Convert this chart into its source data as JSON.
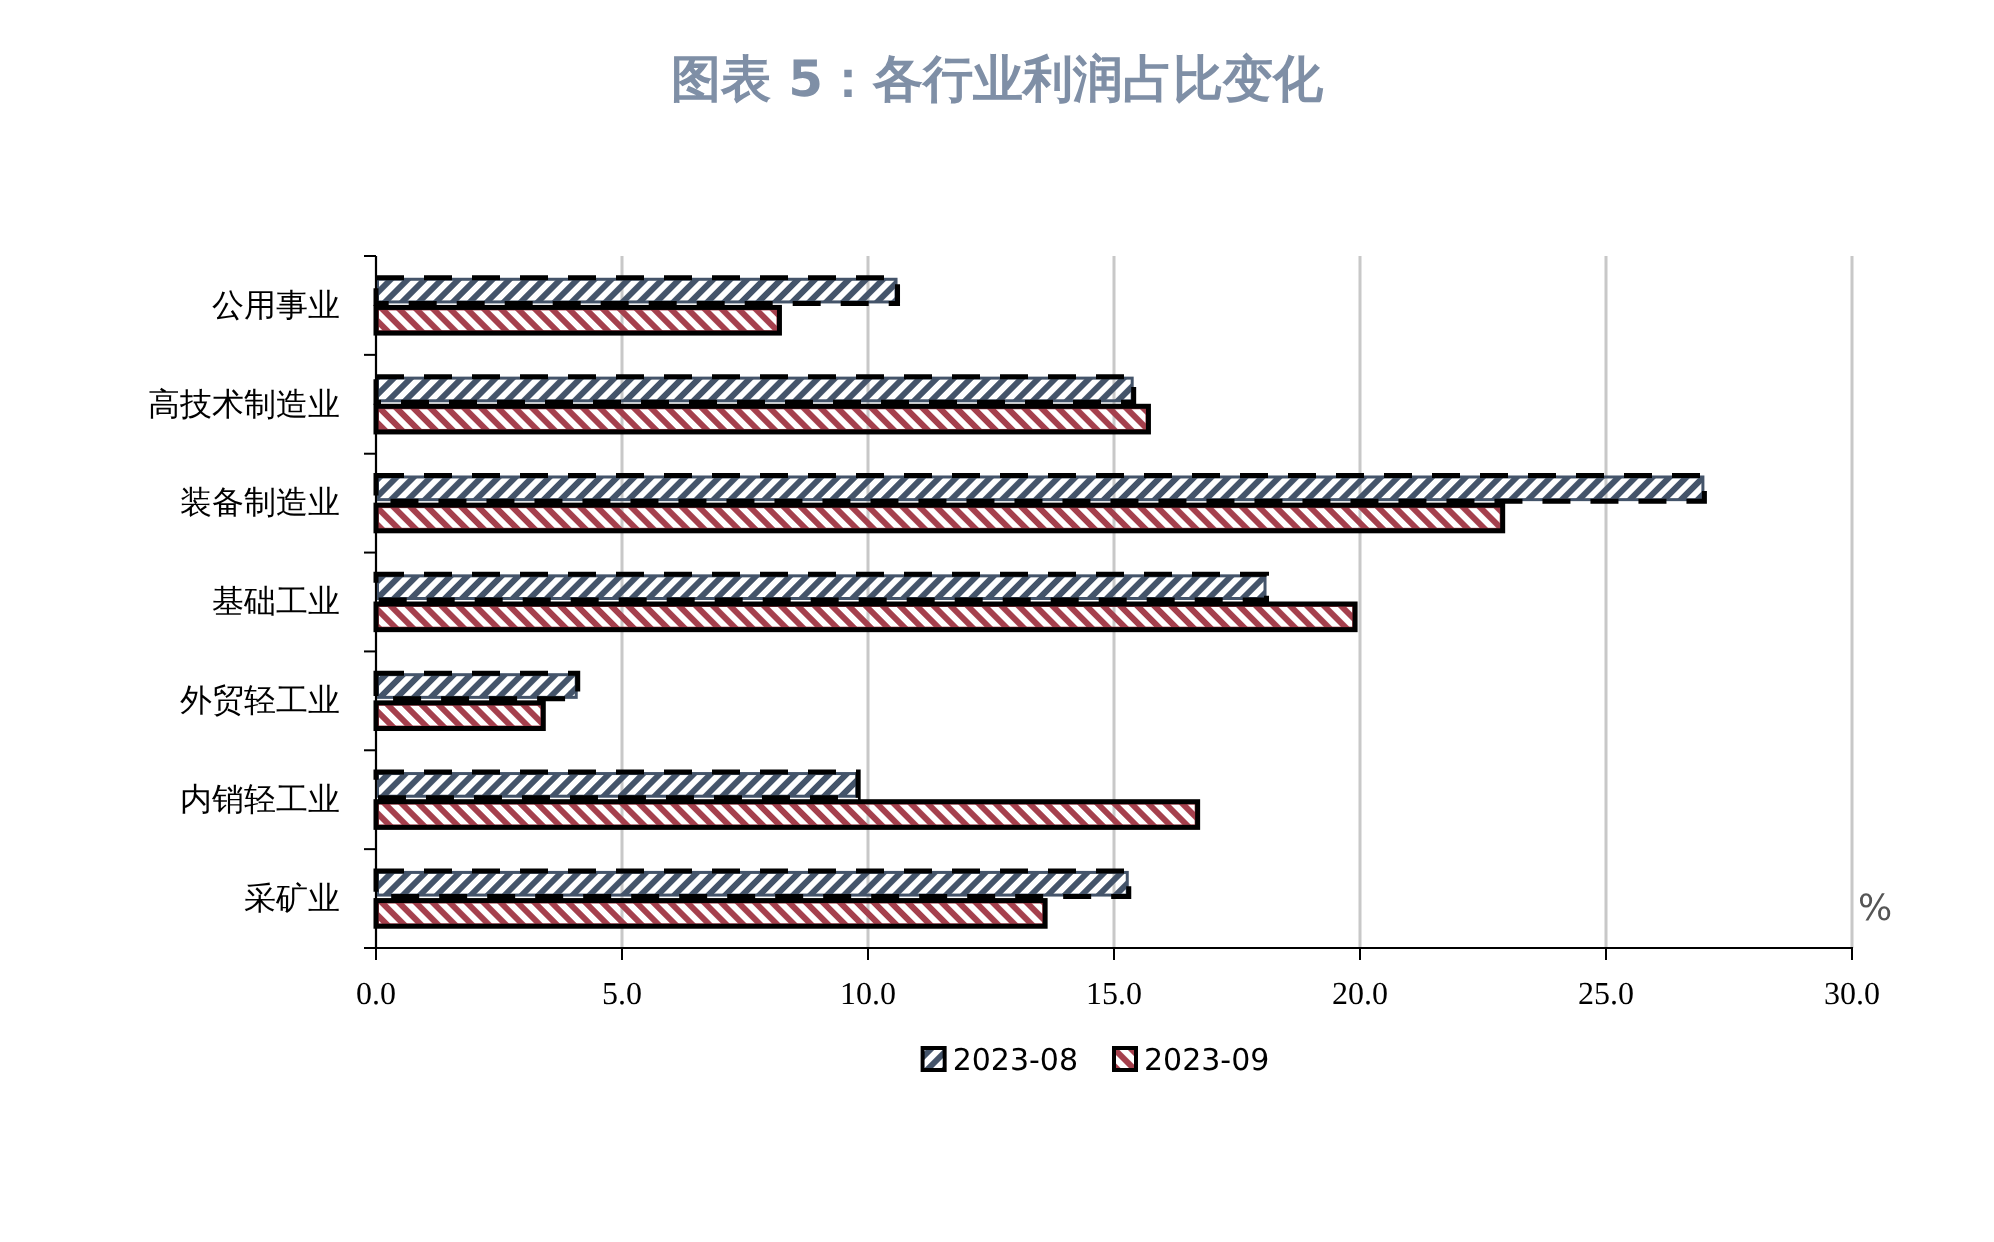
{
  "chart_data": {
    "type": "bar",
    "orientation": "horizontal",
    "title": "图表 5：各行业利润占比变化",
    "categories": [
      "公用事业",
      "高技术制造业",
      "装备制造业",
      "基础工业",
      "外贸轻工业",
      "内销轻工业",
      "采矿业"
    ],
    "series": [
      {
        "name": "2023-08",
        "color": "#44546a",
        "values": [
          10.6,
          15.4,
          27.0,
          18.1,
          4.1,
          9.8,
          15.3
        ]
      },
      {
        "name": "2023-09",
        "color": "#a5404d",
        "values": [
          8.2,
          15.7,
          22.9,
          19.9,
          3.4,
          16.7,
          13.6
        ]
      }
    ],
    "xlim": [
      0,
      30
    ],
    "xticks": [
      {
        "value": 0,
        "label": "0.0"
      },
      {
        "value": 5,
        "label": "5.0"
      },
      {
        "value": 10,
        "label": "10.0"
      },
      {
        "value": 15,
        "label": "15.0"
      },
      {
        "value": 20,
        "label": "20.0"
      },
      {
        "value": 25,
        "label": "25.0"
      },
      {
        "value": 30,
        "label": "30.0"
      }
    ],
    "grid": "x",
    "legend": "bottom",
    "annotations": [
      "%"
    ]
  }
}
